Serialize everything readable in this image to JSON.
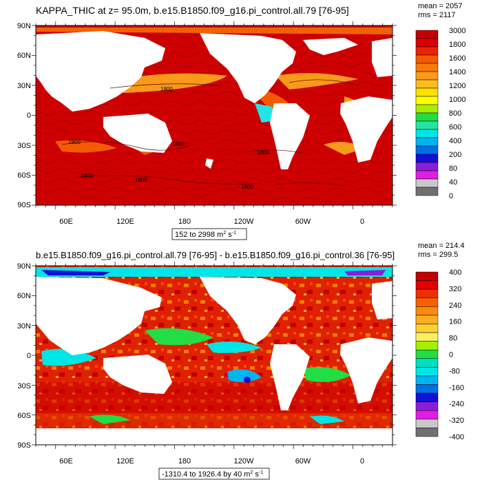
{
  "panels": [
    {
      "title": "KAPPA_THIC at z=  95.0m, b.e15.B1850.f09_g16.pi_control.all.79 [76-95]",
      "stats": {
        "mean": "mean = 2057",
        "rms": "rms = 2117"
      },
      "range_label": "152 to 2998 m",
      "range_exp": "2",
      "range_tail": " s",
      "range_tail_exp": "-1",
      "colorbar": {
        "labels": [
          "3000",
          "1800",
          "1600",
          "1400",
          "1200",
          "1000",
          "800",
          "600",
          "400",
          "200",
          "80",
          "40",
          "0"
        ],
        "colors": [
          "#c40000",
          "#dc0000",
          "#ee2200",
          "#f55a00",
          "#f87a0a",
          "#f89a1a",
          "#fdbb22",
          "#fbe000",
          "#ffff00",
          "#a8ee00",
          "#22dd44",
          "#22e6a0",
          "#00e6e6",
          "#00b4f0",
          "#0070e8",
          "#1010d8",
          "#8a1ed8",
          "#e01ee0",
          "#c8c8c8",
          "#707070"
        ]
      },
      "contour_labels": [
        "1800",
        "1800",
        "1800",
        "1800",
        "1800",
        "1800",
        "1800"
      ]
    },
    {
      "title": "b.e15.B1850.f09_g16.pi_control.all.79 [76-95] - b.e15.B1850.f09_g16.pi_control.36 [76-95]",
      "stats": {
        "mean": "mean = 214.4",
        "rms": "rms = 299.5"
      },
      "range_label": "-1310.4 to 1926.4 by 40 m",
      "range_exp": "2",
      "range_tail": " s",
      "range_tail_exp": "-1",
      "colorbar": {
        "labels": [
          "400",
          "320",
          "240",
          "160",
          "80",
          "0",
          "-80",
          "-160",
          "-240",
          "-320",
          "-400"
        ],
        "colors": [
          "#c40000",
          "#e00000",
          "#f03000",
          "#f56000",
          "#f88a10",
          "#fcae20",
          "#fdd030",
          "#f8f060",
          "#a8ee00",
          "#22dd44",
          "#00e0c0",
          "#00e6e6",
          "#00b4f0",
          "#0070e8",
          "#1010d8",
          "#8a1ed8",
          "#e01ee0",
          "#c8c8c8",
          "#707070"
        ]
      }
    }
  ],
  "axes": {
    "lat_labels": [
      "90N",
      "60N",
      "30N",
      "0",
      "30S",
      "60S",
      "90S"
    ],
    "lon_labels": [
      "60E",
      "120E",
      "180",
      "120W",
      "60W",
      "0"
    ]
  }
}
